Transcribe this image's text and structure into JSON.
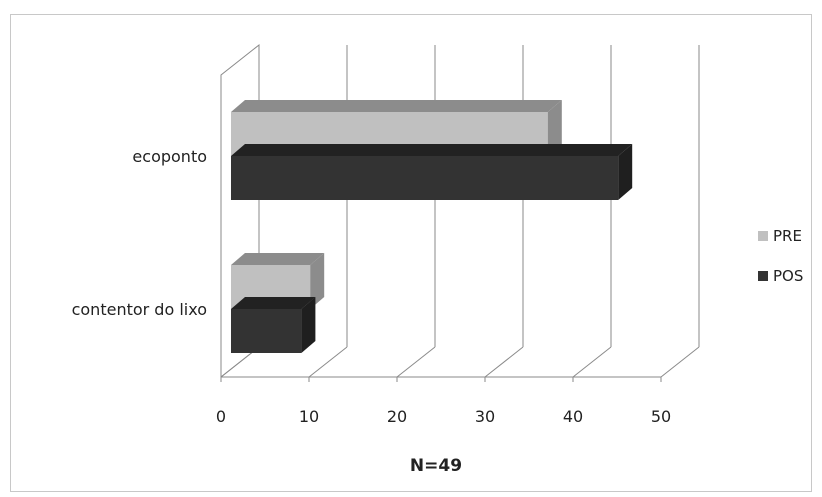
{
  "chart_data": {
    "type": "bar",
    "orientation": "horizontal",
    "style": "3d-clustered",
    "categories": [
      "contentor do lixo",
      "ecoponto"
    ],
    "series": [
      {
        "name": "PRE",
        "values": [
          9,
          36
        ],
        "color": "#c0c0c0",
        "top_color": "#8c8c8c",
        "side_color": "#8c8c8c"
      },
      {
        "name": "POS",
        "values": [
          8,
          44
        ],
        "color": "#333333",
        "top_color": "#222222",
        "side_color": "#1f1f1f"
      }
    ],
    "xlim": [
      0,
      50
    ],
    "xticks": [
      0,
      10,
      20,
      30,
      40,
      50
    ],
    "xlabel": "N=49",
    "ylabel": "",
    "title": "",
    "grid": true,
    "legend_position": "right"
  }
}
